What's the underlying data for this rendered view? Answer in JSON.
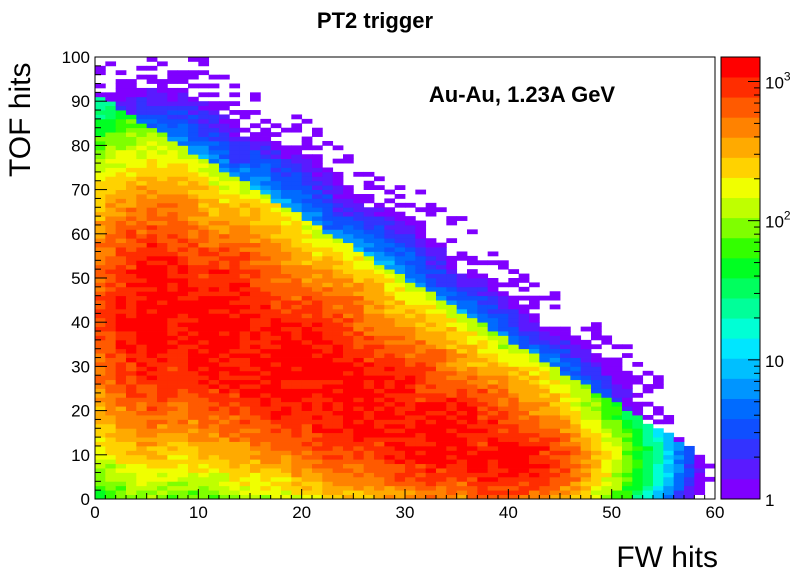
{
  "chart_data": {
    "type": "heatmap",
    "title": "PT2 trigger",
    "xlabel": "FW hits",
    "ylabel": "TOF hits",
    "annotation": "Au-Au, 1.23A GeV",
    "xlim": [
      0,
      60
    ],
    "ylim": [
      0,
      100
    ],
    "x_ticks": [
      0,
      10,
      20,
      30,
      40,
      50,
      60
    ],
    "y_ticks": [
      0,
      10,
      20,
      30,
      40,
      50,
      60,
      70,
      80,
      90,
      100
    ],
    "bin_width_x": 1,
    "bin_width_y": 1,
    "colorbar": {
      "scale": "log",
      "range": [
        1,
        1500
      ],
      "tick_values": [
        1,
        10,
        100,
        1000
      ],
      "tick_labels": [
        {
          "base": "1",
          "exp": ""
        },
        {
          "base": "10",
          "exp": ""
        },
        {
          "base": "10",
          "exp": "2"
        },
        {
          "base": "10",
          "exp": "3"
        }
      ],
      "colors": [
        "#7f00ff",
        "#5a1aff",
        "#3333ff",
        "#0f4fff",
        "#006bff",
        "#0095ff",
        "#00bfff",
        "#00e6ff",
        "#00ffd5",
        "#00ff99",
        "#00ff5e",
        "#00ff22",
        "#33ff00",
        "#7fff00",
        "#bfff00",
        "#f0ff00",
        "#ffd200",
        "#ffaa00",
        "#ff8200",
        "#ff5a00",
        "#ff2d00",
        "#ff0000"
      ]
    },
    "density_model": {
      "peak_count": 1300,
      "bands": [
        {
          "x": 6,
          "y": 42,
          "sx": 5,
          "sy": 18
        },
        {
          "x": 12,
          "y": 38,
          "sx": 6,
          "sy": 16
        },
        {
          "x": 19,
          "y": 30,
          "sx": 7,
          "sy": 14
        },
        {
          "x": 26,
          "y": 22,
          "sx": 7,
          "sy": 12
        },
        {
          "x": 33,
          "y": 15,
          "sx": 7,
          "sy": 10
        },
        {
          "x": 40,
          "y": 9,
          "sx": 5,
          "sy": 7
        }
      ],
      "baseline_row_y": 2,
      "support_edge": "x + 0.72*y <= 66"
    }
  }
}
